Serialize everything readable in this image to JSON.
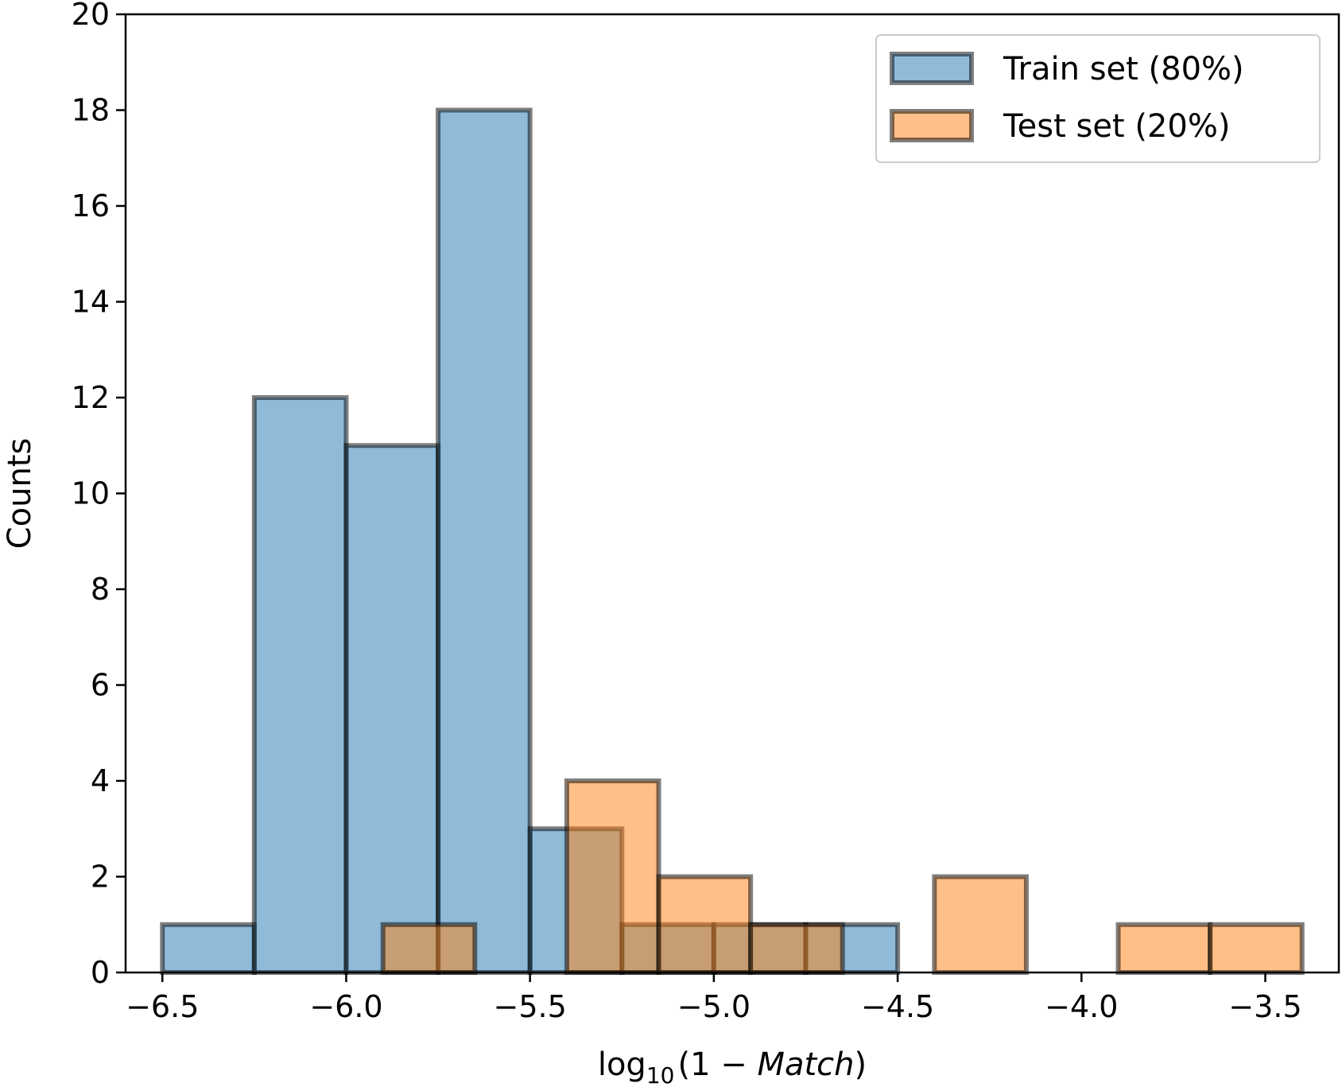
{
  "chart_data": {
    "type": "histogram",
    "xlabel": {
      "prefix": "log",
      "subscript": "10",
      "paren_open": "(1 − ",
      "italic": "Match",
      "paren_close": ")"
    },
    "ylabel": "Counts",
    "xlim": [
      -6.6,
      -3.3
    ],
    "ylim": [
      0,
      20
    ],
    "xticks": [
      -6.5,
      -6.0,
      -5.5,
      -5.0,
      -4.5,
      -4.0,
      -3.5
    ],
    "xtick_labels": [
      "−6.5",
      "−6.0",
      "−5.5",
      "−5.0",
      "−4.5",
      "−4.0",
      "−3.5"
    ],
    "yticks": [
      0,
      2,
      4,
      6,
      8,
      10,
      12,
      14,
      16,
      18,
      20
    ],
    "ytick_labels": [
      "0",
      "2",
      "4",
      "6",
      "8",
      "10",
      "12",
      "14",
      "16",
      "18",
      "20"
    ],
    "legend_position": "top-right",
    "series": [
      {
        "name": "Train set (80%)",
        "color": "#1f77b4",
        "bins": [
          {
            "x0": -6.5,
            "x1": -6.25,
            "count": 1
          },
          {
            "x0": -6.25,
            "x1": -6.0,
            "count": 12
          },
          {
            "x0": -6.0,
            "x1": -5.75,
            "count": 11
          },
          {
            "x0": -5.75,
            "x1": -5.5,
            "count": 18
          },
          {
            "x0": -5.5,
            "x1": -5.25,
            "count": 3
          },
          {
            "x0": -5.25,
            "x1": -5.0,
            "count": 1
          },
          {
            "x0": -5.0,
            "x1": -4.75,
            "count": 1
          },
          {
            "x0": -4.75,
            "x1": -4.5,
            "count": 1
          }
        ]
      },
      {
        "name": "Test set (20%)",
        "color": "#ff7f0e",
        "bins": [
          {
            "x0": -5.9,
            "x1": -5.65,
            "count": 1
          },
          {
            "x0": -5.65,
            "x1": -5.4,
            "count": 0
          },
          {
            "x0": -5.4,
            "x1": -5.15,
            "count": 4
          },
          {
            "x0": -5.15,
            "x1": -4.9,
            "count": 2
          },
          {
            "x0": -4.9,
            "x1": -4.65,
            "count": 1
          },
          {
            "x0": -4.65,
            "x1": -4.4,
            "count": 0
          },
          {
            "x0": -4.4,
            "x1": -4.15,
            "count": 2
          },
          {
            "x0": -4.15,
            "x1": -3.9,
            "count": 0
          },
          {
            "x0": -3.9,
            "x1": -3.65,
            "count": 1
          },
          {
            "x0": -3.65,
            "x1": -3.4,
            "count": 1
          }
        ]
      }
    ]
  }
}
